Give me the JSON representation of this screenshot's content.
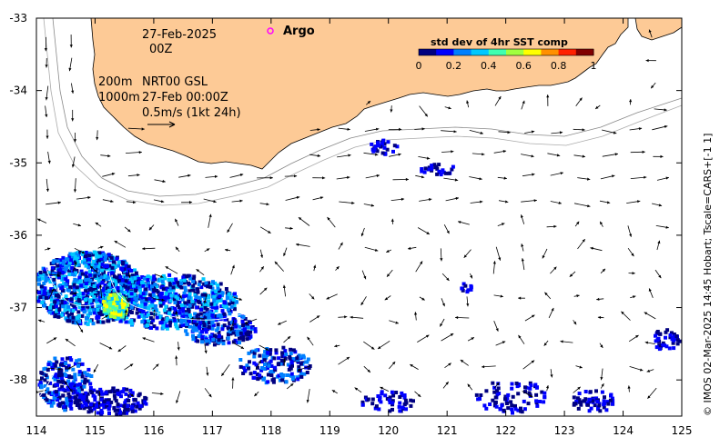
{
  "map": {
    "date_line": "27-Feb-2025",
    "time_line": "00Z",
    "depth_200_label": "200m",
    "depth_1000_label": "1000m",
    "product_label": "NRT00 GSL",
    "product_time": "27-Feb 00:00Z",
    "speed_scale_label": "0.5m/s (1kt 24h)",
    "argo_label": "Argo",
    "argo_marker_color": "#ff00ff",
    "credit": "© IMOS 02-Mar-2025 14:45 Hobart; Tscale=CARS+[-1 1]",
    "land_color": "#fdca96",
    "x_ticks": [
      "114",
      "115",
      "116",
      "117",
      "118",
      "119",
      "120",
      "121",
      "122",
      "123",
      "124",
      "125"
    ],
    "y_ticks": [
      "-33",
      "-34",
      "-35",
      "-36",
      "-37",
      "-38"
    ],
    "lon_range": [
      114,
      125
    ],
    "lat_range": [
      -38.5,
      -33
    ]
  },
  "colorbar": {
    "title": "std dev of 4hr SST comp",
    "ticks": [
      "0",
      "0.2",
      "0.4",
      "0.6",
      "0.8",
      "1"
    ],
    "colors": [
      "#000080",
      "#0000ff",
      "#0080ff",
      "#00c8ff",
      "#40ffb0",
      "#a0ff40",
      "#ffff00",
      "#ff9000",
      "#ff2000",
      "#800000"
    ]
  }
}
